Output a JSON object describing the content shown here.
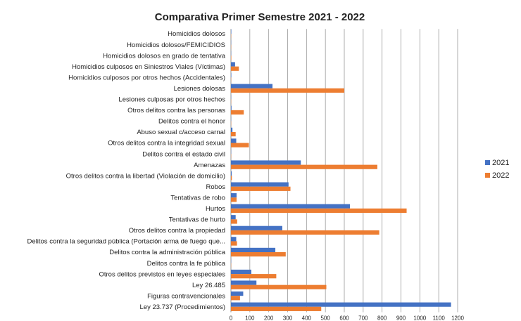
{
  "chart_data": {
    "type": "bar",
    "orientation": "horizontal",
    "title": "Comparativa Primer Semestre 2021 - 2022",
    "xlabel": "",
    "ylabel": "",
    "xlim": [
      0,
      1200
    ],
    "x_ticks": [
      "0",
      "100",
      "200",
      "300",
      "400",
      "500",
      "600",
      "700",
      "800",
      "900",
      "1000",
      "1100",
      "1200"
    ],
    "grid": "vertical",
    "legend_position": "right",
    "categories": [
      "Homicidios dolosos",
      "Homicidios dolosos/FEMICIDIOS",
      "Homicidios dolosos en grado de tentativa",
      "Homicidios culposos en Siniestros Viales (Víctimas)",
      "Homicidios culposos por otros hechos (Accidentales)",
      "Lesiones dolosas",
      "Lesiones culposas por otros hechos",
      "Otros delitos contra las personas",
      "Delitos contra el honor",
      "Abuso sexual c/acceso carnal",
      "Otros delitos contra la integridad sexual",
      "Delitos contra el estado civil",
      "Amenazas",
      "Otros delitos contra la libertad (Violación de domicilio)",
      "Robos",
      "Tentativas de robo",
      "Hurtos",
      "Tentativas de hurto",
      "Otros delitos contra la propiedad",
      "Delitos contra la seguridad pública (Portación  arma de fuego que...",
      "Delitos contra la administración pública",
      "Delitos contra la fe pública",
      "Otros delitos previstos en leyes especiales",
      "Ley 26.485",
      "Figuras contravencionales",
      "Ley 23.737 (Procedimientos)"
    ],
    "series": [
      {
        "name": "2021",
        "color": "#4472c4",
        "values": [
          2,
          1,
          1,
          22,
          2,
          220,
          1,
          3,
          1,
          8,
          28,
          1,
          370,
          4,
          305,
          30,
          630,
          25,
          272,
          28,
          235,
          1,
          108,
          135,
          65,
          1165
        ]
      },
      {
        "name": "2022",
        "color": "#ed7d31",
        "values": [
          1,
          1,
          2,
          42,
          1,
          600,
          1,
          68,
          1,
          25,
          95,
          1,
          775,
          5,
          315,
          30,
          930,
          33,
          785,
          32,
          290,
          1,
          240,
          505,
          48,
          478
        ]
      }
    ]
  }
}
